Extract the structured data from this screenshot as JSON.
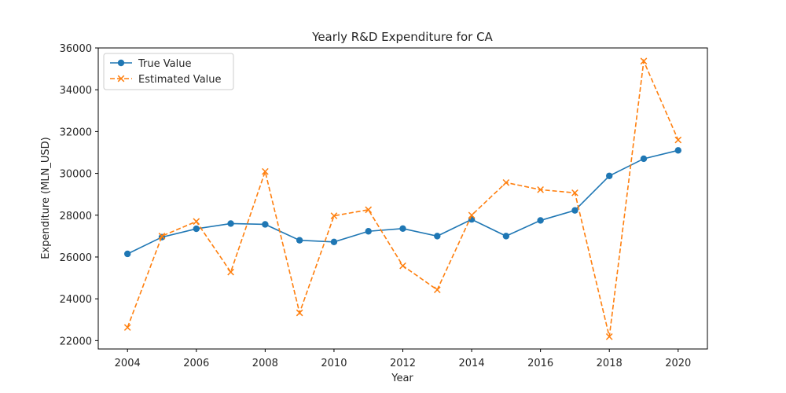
{
  "chart_data": {
    "type": "line",
    "title": "Yearly R&D Expenditure for CA",
    "xlabel": "Year",
    "ylabel": "Expenditure (MLN_USD)",
    "x": [
      2004,
      2005,
      2006,
      2007,
      2008,
      2009,
      2010,
      2011,
      2012,
      2013,
      2014,
      2015,
      2016,
      2017,
      2018,
      2019,
      2020
    ],
    "xlim": [
      2003.15,
      2020.85
    ],
    "ylim": [
      21600,
      36000
    ],
    "xticks": [
      2004,
      2006,
      2008,
      2010,
      2012,
      2014,
      2016,
      2018,
      2020
    ],
    "yticks": [
      22000,
      24000,
      26000,
      28000,
      30000,
      32000,
      34000,
      36000
    ],
    "grid": false,
    "legend": "top-left",
    "series": [
      {
        "name": "True Value",
        "color": "#1f77b4",
        "line_style": "solid",
        "marker": "circle",
        "values": [
          26150,
          26950,
          27350,
          27600,
          27560,
          26800,
          26720,
          27230,
          27360,
          27000,
          27800,
          27000,
          27750,
          28230,
          29880,
          30700,
          31100
        ]
      },
      {
        "name": "Estimated Value",
        "color": "#ff7f0e",
        "line_style": "dashed",
        "marker": "x",
        "values": [
          22630,
          27000,
          27700,
          25280,
          30090,
          23330,
          27970,
          28260,
          25580,
          24430,
          28000,
          29560,
          29220,
          29070,
          22190,
          35370,
          31600
        ]
      }
    ]
  }
}
